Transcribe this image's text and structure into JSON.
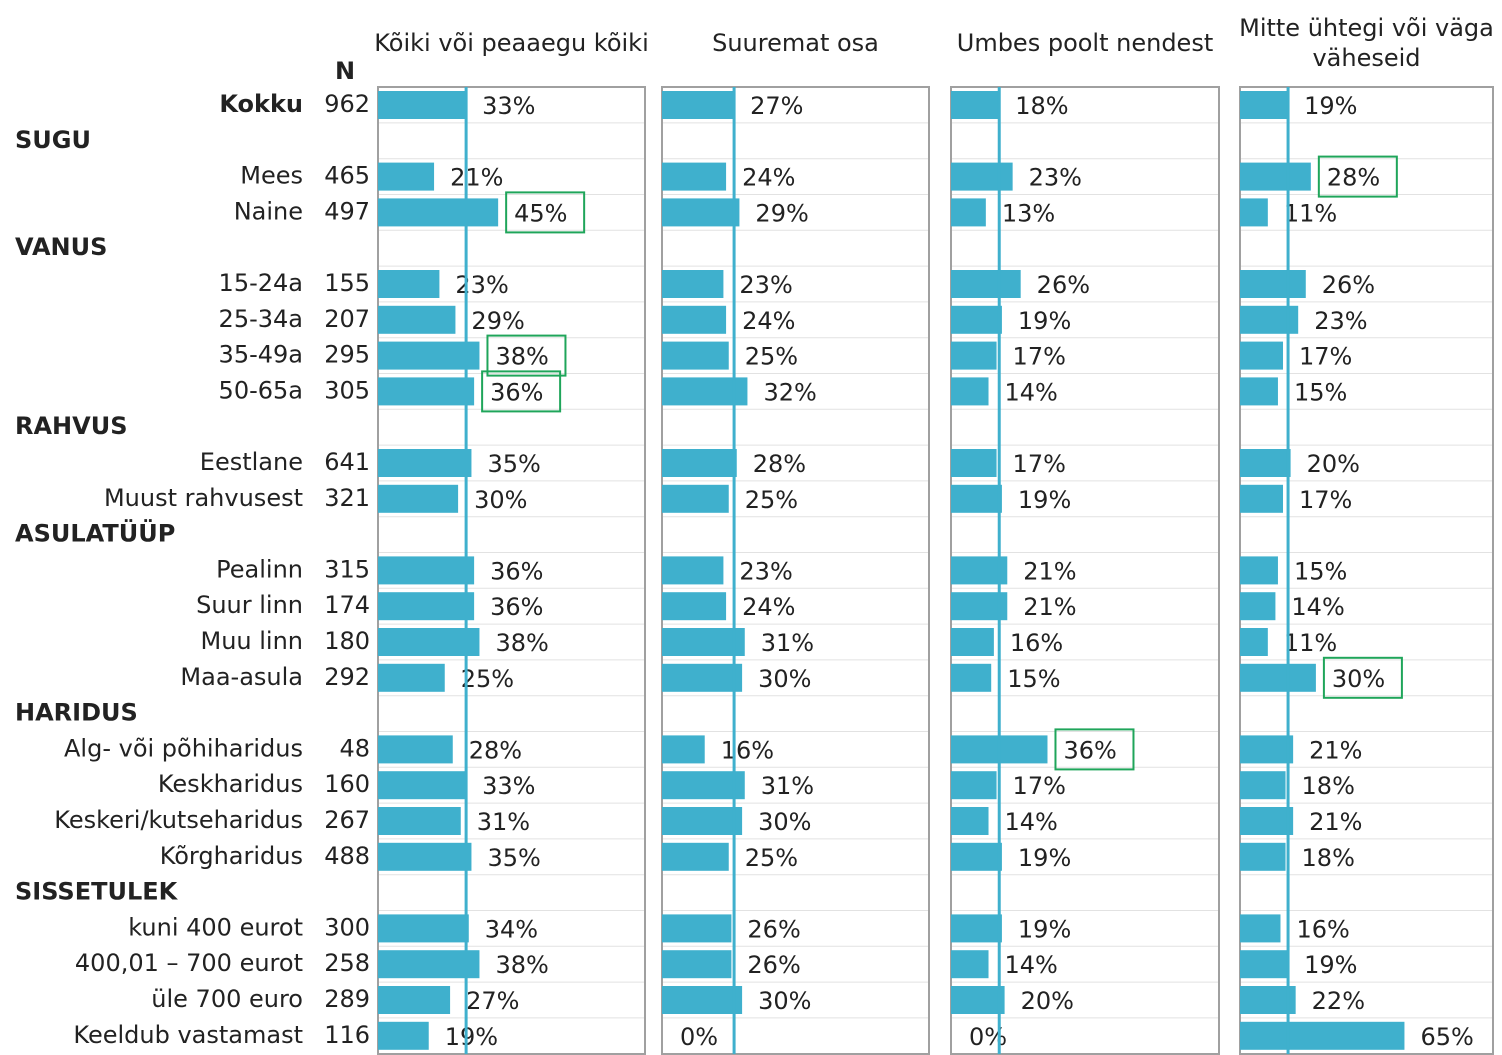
{
  "chart_data": {
    "type": "bar",
    "n_label": "N",
    "categories": [
      "Kokku",
      "SUGU",
      "Mees",
      "Naine",
      "VANUS",
      "15-24a",
      "25-34a",
      "35-49a",
      "50-65a",
      "RAHVUS",
      "Eestlane",
      "Muust rahvusest",
      "ASULATÜÜP",
      "Pealinn",
      "Suur linn",
      "Muu linn",
      "Maa-asula",
      "HARIDUS",
      "Alg- või põhiharidus",
      "Keskharidus",
      "Keskeri/kutseharidus",
      "Kõrgharidus",
      "SISSETULEK",
      "kuni 400 eurot",
      "400,01 – 700 eurot",
      "üle 700 euro",
      "Keeldub vastamast"
    ],
    "n": [
      962,
      null,
      465,
      497,
      null,
      155,
      207,
      295,
      305,
      null,
      641,
      321,
      null,
      315,
      174,
      180,
      292,
      null,
      48,
      160,
      267,
      488,
      null,
      300,
      258,
      289,
      116
    ],
    "xlim": [
      0,
      100
    ],
    "highlight_color": "#1fa55a",
    "series": [
      {
        "name": "Kõiki või peaaegu kõiki",
        "color": "#3fb0cd",
        "values": [
          33,
          null,
          21,
          45,
          null,
          23,
          29,
          38,
          36,
          null,
          35,
          30,
          null,
          36,
          36,
          38,
          25,
          null,
          28,
          33,
          31,
          35,
          null,
          34,
          38,
          27,
          19
        ],
        "value_labels": [
          "33%",
          null,
          "21%",
          "45%",
          null,
          "23%",
          "29%",
          "38%",
          "36%",
          null,
          "35%",
          "30%",
          null,
          "36%",
          "36%",
          "38%",
          "25%",
          null,
          "28%",
          "33%",
          "31%",
          "35%",
          null,
          "34%",
          "38%",
          "27%",
          "19%"
        ],
        "highlighted": [
          3,
          7,
          8
        ]
      },
      {
        "name": "Suuremat osa",
        "color": "#3fb0cd",
        "values": [
          27,
          null,
          24,
          29,
          null,
          23,
          24,
          25,
          32,
          null,
          28,
          25,
          null,
          23,
          24,
          31,
          30,
          null,
          16,
          31,
          30,
          25,
          null,
          26,
          26,
          30,
          0
        ],
        "value_labels": [
          "27%",
          null,
          "24%",
          "29%",
          null,
          "23%",
          "24%",
          "25%",
          "32%",
          null,
          "28%",
          "25%",
          null,
          "23%",
          "24%",
          "31%",
          "30%",
          null,
          "16%",
          "31%",
          "30%",
          "25%",
          null,
          "26%",
          "26%",
          "30%",
          "0%"
        ],
        "highlighted": []
      },
      {
        "name": "Umbes poolt nendest",
        "color": "#3fb0cd",
        "values": [
          18,
          null,
          23,
          13,
          null,
          26,
          19,
          17,
          14,
          null,
          17,
          19,
          null,
          21,
          21,
          16,
          15,
          null,
          36,
          17,
          14,
          19,
          null,
          19,
          14,
          20,
          0
        ],
        "value_labels": [
          "18%",
          null,
          "23%",
          "13%",
          null,
          "26%",
          "19%",
          "17%",
          "14%",
          null,
          "17%",
          "19%",
          null,
          "21%",
          "21%",
          "16%",
          "15%",
          null,
          "36%",
          "17%",
          "14%",
          "19%",
          null,
          "19%",
          "14%",
          "20%",
          "0%"
        ],
        "highlighted": [
          18
        ]
      },
      {
        "name": "Mitte ühtegi või väga väheseid",
        "color": "#3fb0cd",
        "values": [
          19,
          null,
          28,
          11,
          null,
          26,
          23,
          17,
          15,
          null,
          20,
          17,
          null,
          15,
          14,
          11,
          30,
          null,
          21,
          18,
          21,
          18,
          null,
          16,
          19,
          22,
          65
        ],
        "value_labels": [
          "19%",
          null,
          "28%",
          "11%",
          null,
          "26%",
          "23%",
          "17%",
          "15%",
          null,
          "20%",
          "17%",
          null,
          "15%",
          "14%",
          "11%",
          "30%",
          null,
          "21%",
          "18%",
          "21%",
          "18%",
          null,
          "16%",
          "19%",
          "22%",
          "65%"
        ],
        "highlighted": [
          2,
          16
        ]
      }
    ]
  }
}
